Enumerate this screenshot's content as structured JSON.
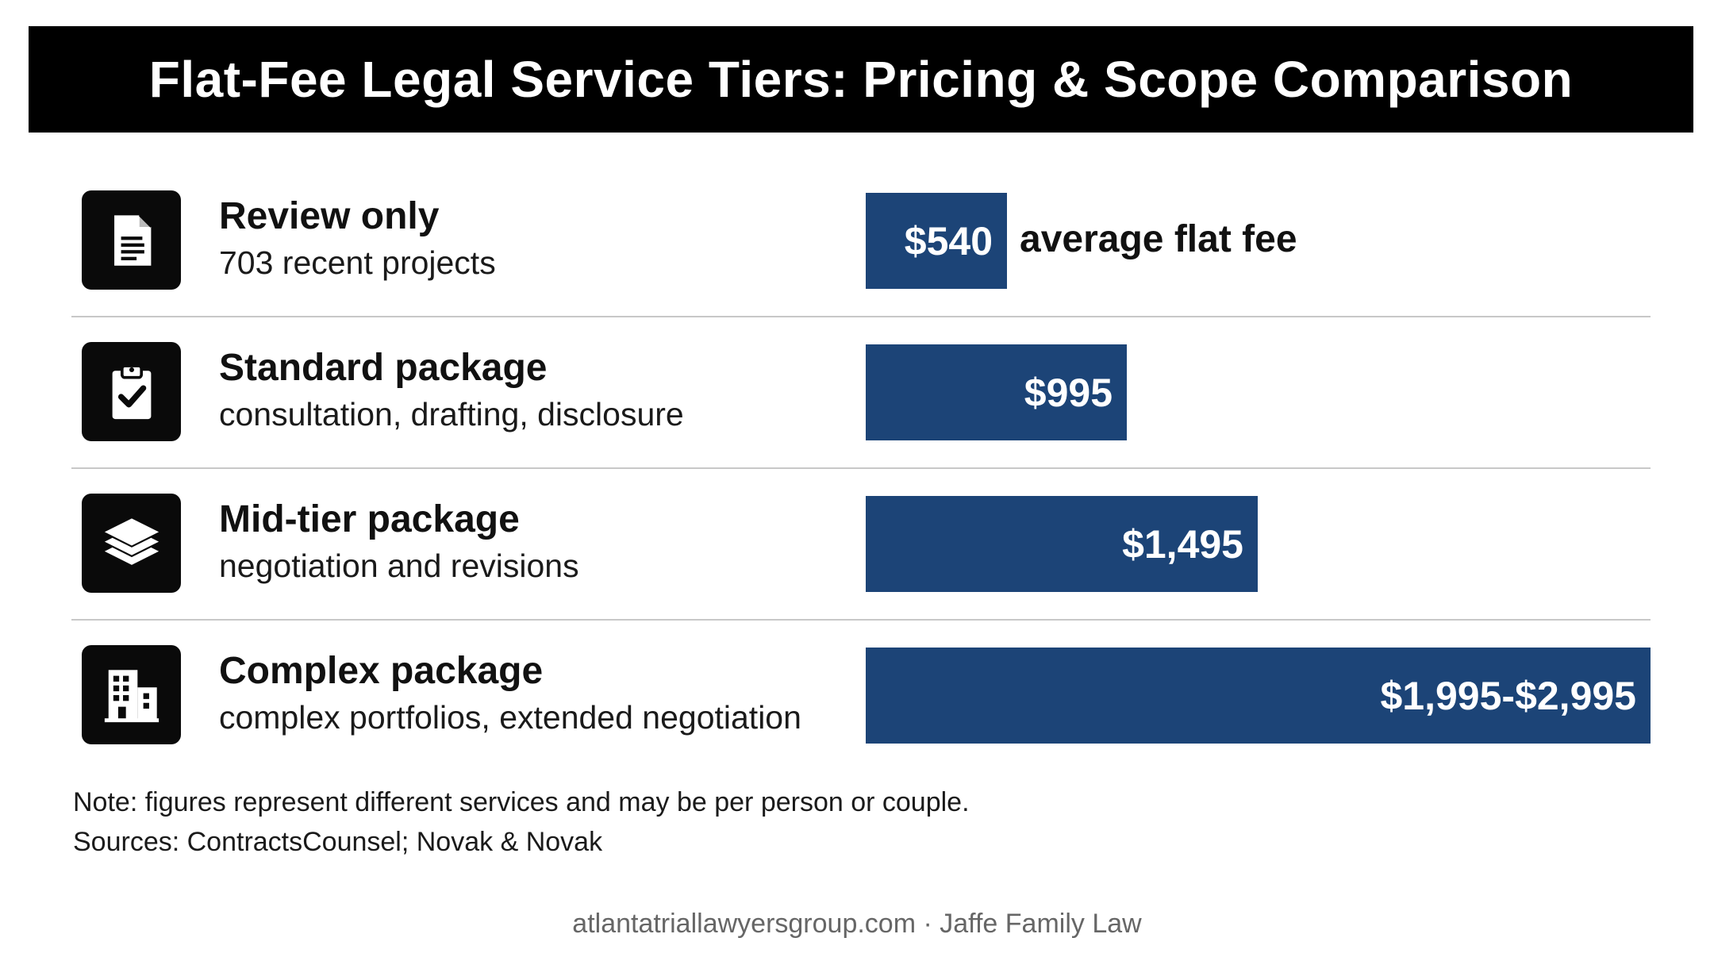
{
  "title": "Flat-Fee Legal Service Tiers: Pricing & Scope Comparison",
  "chart_data": {
    "type": "bar",
    "orientation": "horizontal",
    "title": "Flat-Fee Legal Service Tiers: Pricing & Scope Comparison",
    "xlim": [
      0,
      2995
    ],
    "grid": false,
    "legend": "none",
    "bar_color": "#1c4477",
    "rows": [
      {
        "name": "Review only",
        "description": "703 recent projects",
        "icon": "document-icon",
        "value": 540,
        "label": "$540",
        "suffix": "average flat fee"
      },
      {
        "name": "Standard package",
        "description": "consultation, drafting, disclosure",
        "icon": "clipboard-check-icon",
        "value": 995,
        "label": "$995",
        "suffix": ""
      },
      {
        "name": "Mid-tier package",
        "description": "negotiation and revisions",
        "icon": "layers-icon",
        "value": 1495,
        "label": "$1,495",
        "suffix": ""
      },
      {
        "name": "Complex package",
        "description": "complex portfolios, extended negotiation",
        "icon": "building-icon",
        "value": 2995,
        "value_range": [
          1995,
          2995
        ],
        "label": "$1,995-$2,995",
        "suffix": ""
      }
    ]
  },
  "notes": {
    "note": "Note: figures represent different services and may be per person or couple.",
    "sources": "Sources: ContractsCounsel; Novak & Novak"
  },
  "footer": "atlantatriallawyersgroup.com · Jaffe Family Law"
}
